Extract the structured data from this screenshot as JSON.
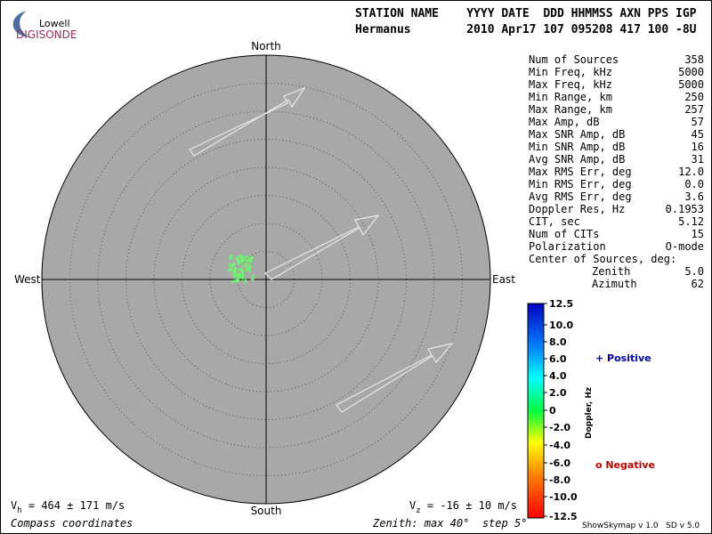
{
  "logo": {
    "top": "Lowell",
    "bottom": "DIGISONDE"
  },
  "header": {
    "line1": "STATION NAME    YYYY DATE  DDD HHMMSS AXN PPS IGP",
    "line2": "Hermanus        2010 Apr17 107 095208 417 100 -8U"
  },
  "compass": {
    "north": "North",
    "south": "South",
    "east": "East",
    "west": "West"
  },
  "stats": [
    [
      "Num of Sources",
      "358"
    ],
    [
      "Min Freq, kHz",
      "5000"
    ],
    [
      "Max Freq, kHz",
      "5000"
    ],
    [
      "Min Range, km",
      "250"
    ],
    [
      "Max Range, km",
      "257"
    ],
    [
      "Max Amp, dB",
      "57"
    ],
    [
      "Max SNR Amp, dB",
      "45"
    ],
    [
      "Min SNR Amp, dB",
      "16"
    ],
    [
      "Avg SNR Amp, dB",
      "31"
    ],
    [
      "Max RMS Err, deg",
      "12.0"
    ],
    [
      "Min RMS Err, deg",
      "0.0"
    ],
    [
      "Avg RMS Err, deg",
      "3.6"
    ],
    [
      "Doppler Res, Hz",
      "0.1953"
    ],
    [
      "CIT, sec",
      "5.12"
    ],
    [
      "Num of CITs",
      "15"
    ],
    [
      "Polarization",
      "O-mode"
    ]
  ],
  "center": {
    "title": "Center of Sources, deg:",
    "rows": [
      [
        "Zenith",
        "5.0"
      ],
      [
        "Azimuth",
        "62"
      ]
    ]
  },
  "colorbar": {
    "title": "Doppler, Hz",
    "ticks": [
      "12.5",
      "10.0",
      "8.0",
      "6.0",
      "4.0",
      "2.0",
      "0",
      "-2.0",
      "-4.0",
      "-6.0",
      "-8.0",
      "-10.0",
      "-12.5"
    ]
  },
  "legend": {
    "positive": "+ Positive",
    "negative": "o Negative"
  },
  "footer": {
    "vh": [
      "V",
      "h",
      " = 464 ± 171 m/s"
    ],
    "vz": [
      "V",
      "z",
      " = -16 ± 10 m/s"
    ],
    "coords": "Compass coordinates",
    "zenith": "Zenith: max 40°  step 5°",
    "version": "ShowSkymap v 1.0   SD v 5.0"
  }
}
